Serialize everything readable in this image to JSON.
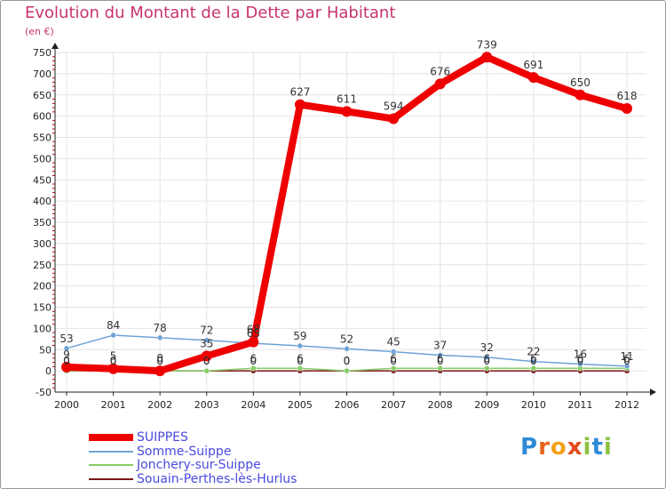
{
  "title": "Evolution du Montant de la Dette par Habitant",
  "unit_label": "(en €)",
  "logo": {
    "letters": [
      "P",
      "r",
      "o",
      "x",
      "i",
      "t",
      "i"
    ],
    "colors": [
      "#2e8bd6",
      "#e9621f",
      "#f2a21b",
      "#e24b1c",
      "#8cc23f",
      "#2e8bd6",
      "#8cc23f"
    ]
  },
  "colors": {
    "title": "#c7336f",
    "axis": "#222222",
    "legend_text": "#4a4adf",
    "tick_marks": "#cc0000"
  },
  "chart_data": {
    "type": "line",
    "title": "Evolution du Montant de la Dette par Habitant",
    "xlabel": "",
    "ylabel": "(en €)",
    "ylim": [
      -50,
      750
    ],
    "y_ticks": [
      -50,
      0,
      50,
      100,
      150,
      200,
      250,
      300,
      350,
      400,
      450,
      500,
      550,
      600,
      650,
      700,
      750
    ],
    "x_ticks": [
      "2000",
      "2001",
      "2002",
      "2003",
      "2004",
      "2005",
      "2006",
      "2007",
      "2008",
      "2009",
      "2010",
      "2011",
      "2012"
    ],
    "x": [
      2000,
      2001,
      2002,
      2003,
      2004,
      2005,
      2006,
      2007,
      2008,
      2009,
      2010,
      2011,
      2012
    ],
    "grid": true,
    "legend_position": "bottom-left",
    "series": [
      {
        "name": "SUIPPES",
        "color": "#ee0000",
        "width": 8,
        "values": [
          9,
          5,
          0,
          35,
          68,
          627,
          611,
          594,
          676,
          739,
          691,
          650,
          618
        ],
        "labels": [
          "9",
          "5",
          "0",
          "35",
          "68",
          "627",
          "611",
          "594",
          "676",
          "739",
          "691",
          "650",
          "618"
        ]
      },
      {
        "name": "Somme-Suippe",
        "color": "#6fa3d6",
        "width": 1.5,
        "values": [
          53,
          84,
          78,
          72,
          65,
          59,
          52,
          45,
          37,
          32,
          22,
          16,
          11
        ],
        "labels": [
          "53",
          "84",
          "78",
          "72",
          "65",
          "59",
          "52",
          "45",
          "37",
          "32",
          "22",
          "16",
          "11"
        ]
      },
      {
        "name": "Jonchery-sur-Suippe",
        "color": "#88cc66",
        "width": 1.5,
        "values": [
          0,
          0,
          0,
          0,
          6,
          6,
          0,
          6,
          6,
          6,
          6,
          6,
          6
        ],
        "labels": [
          "0",
          "0",
          "0",
          "0",
          "6",
          "6",
          "0",
          "6",
          "6",
          "6",
          "6",
          "6",
          "6"
        ]
      },
      {
        "name": "Souain-Perthes-lès-Hurlus",
        "color": "#7a1414",
        "width": 1.5,
        "values": [
          0,
          0,
          0,
          0,
          0,
          0,
          0,
          0,
          0,
          0,
          0,
          0,
          0
        ],
        "labels": [
          "0",
          "0",
          "0",
          "0",
          "0",
          "0",
          "0",
          "0",
          "0",
          "0",
          "0",
          "0",
          "0"
        ]
      }
    ]
  }
}
